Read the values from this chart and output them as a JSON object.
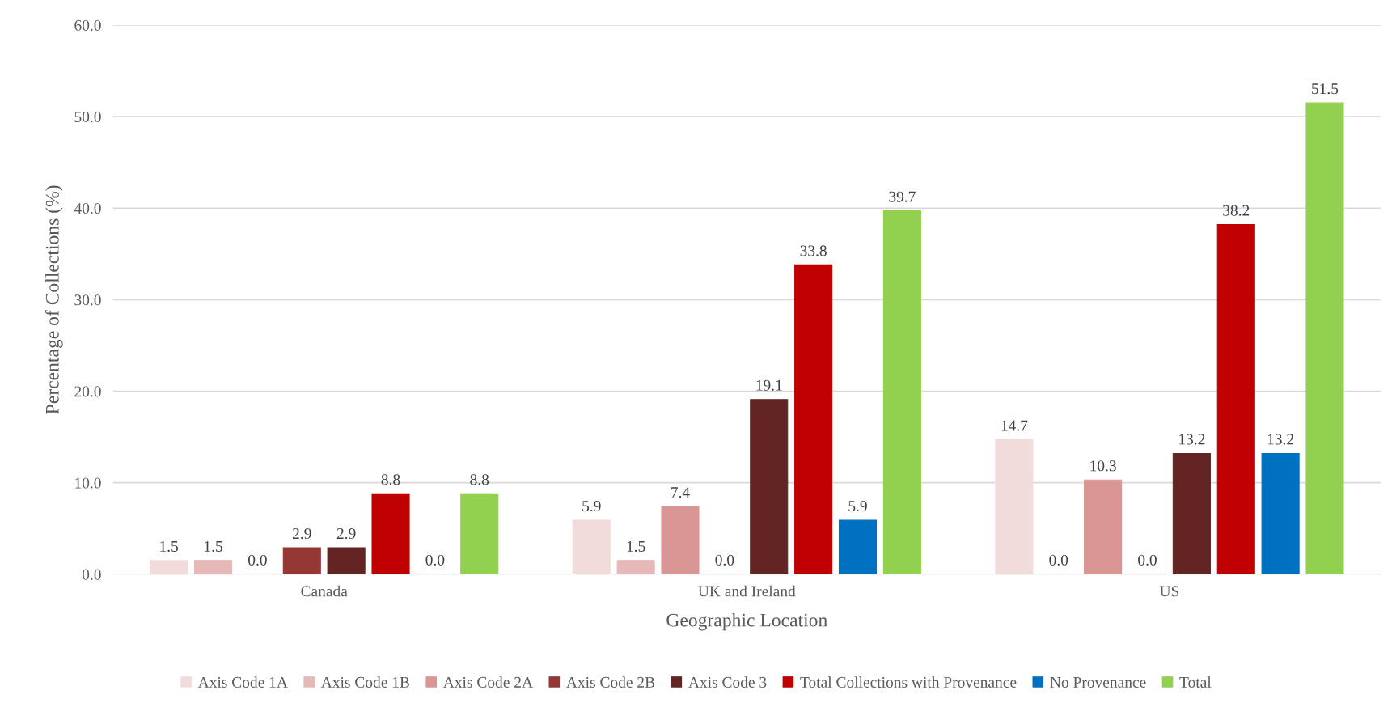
{
  "chart_data": {
    "type": "bar",
    "xlabel": "Geographic Location",
    "ylabel": "Percentage of Collections (%)",
    "categories": [
      "Canada",
      "UK and Ireland",
      "US"
    ],
    "series": [
      {
        "name": "Axis Code 1A",
        "color": "#f2dcdb",
        "values": [
          1.5,
          5.9,
          14.7
        ],
        "value_labels": [
          "1.5",
          "5.9",
          "14.7"
        ]
      },
      {
        "name": "Axis Code 1B",
        "color": "#e6b9b8",
        "values": [
          1.5,
          1.5,
          0
        ],
        "value_labels": [
          "1.5",
          "1.5",
          "0.0"
        ]
      },
      {
        "name": "Axis Code 2A",
        "color": "#d99694",
        "values": [
          0,
          7.4,
          10.3
        ],
        "value_labels": [
          "0.0",
          "7.4",
          "10.3"
        ]
      },
      {
        "name": "Axis Code 2B",
        "color": "#953735",
        "values": [
          2.9,
          0,
          0
        ],
        "value_labels": [
          "2.9",
          "0.0",
          "0.0"
        ]
      },
      {
        "name": "Axis Code 3",
        "color": "#632523",
        "values": [
          2.9,
          19.1,
          13.2
        ],
        "value_labels": [
          "2.9",
          "19.1",
          "13.2"
        ]
      },
      {
        "name": "Total Collections with Provenance",
        "color": "#c00000",
        "values": [
          8.8,
          33.8,
          38.2
        ],
        "value_labels": [
          "8.8",
          "33.8",
          "38.2"
        ]
      },
      {
        "name": "No Provenance",
        "color": "#0070c0",
        "values": [
          0,
          5.9,
          13.2
        ],
        "value_labels": [
          "0.0",
          "5.9",
          "13.2"
        ]
      },
      {
        "name": "Total",
        "color": "#92d050",
        "values": [
          8.8,
          39.7,
          51.5
        ],
        "value_labels": [
          "8.8",
          "39.7",
          "51.5"
        ]
      }
    ],
    "ylim": [
      0,
      60
    ],
    "yticks": [
      {
        "value": 0,
        "label": "0.0"
      },
      {
        "value": 10,
        "label": "10.0"
      },
      {
        "value": 20,
        "label": "20.0"
      },
      {
        "value": 30,
        "label": "30.0"
      },
      {
        "value": 40,
        "label": "40.0"
      },
      {
        "value": 50,
        "label": "50.0"
      },
      {
        "value": 60,
        "label": "60.0"
      }
    ],
    "grid": "y",
    "legend": "bottom"
  }
}
